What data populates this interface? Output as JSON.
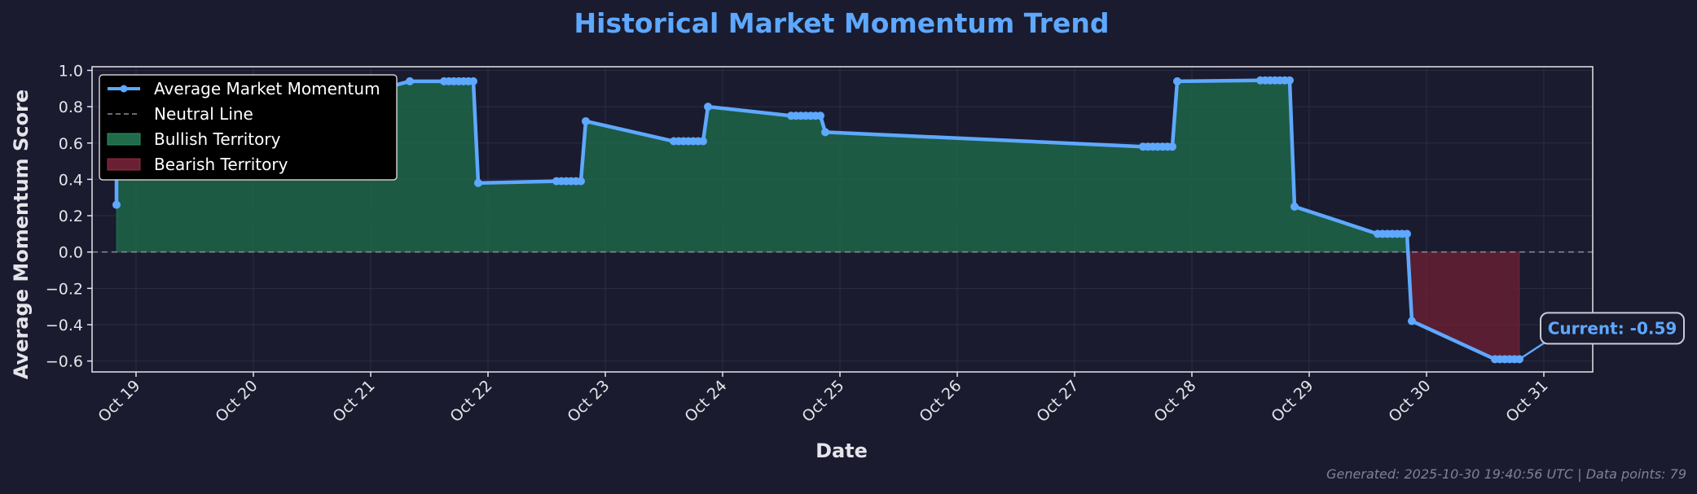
{
  "chart_data": {
    "type": "line",
    "title": "Historical Market Momentum Trend",
    "xlabel": "Date",
    "ylabel": "Average Momentum Score",
    "ylim": [
      -0.66,
      1.02
    ],
    "xlim": [
      "2025-10-18 15:00",
      "2025-10-31 10:00"
    ],
    "yticks": [
      -0.6,
      -0.4,
      -0.2,
      0.0,
      0.2,
      0.4,
      0.6,
      0.8,
      1.0
    ],
    "ytick_labels": [
      "−0.6",
      "−0.4",
      "−0.2",
      "0.0",
      "0.2",
      "0.4",
      "0.6",
      "0.8",
      "1.0"
    ],
    "xticks": [
      "2025-10-19",
      "2025-10-20",
      "2025-10-21",
      "2025-10-22",
      "2025-10-23",
      "2025-10-24",
      "2025-10-25",
      "2025-10-26",
      "2025-10-27",
      "2025-10-28",
      "2025-10-29",
      "2025-10-30",
      "2025-10-31"
    ],
    "xtick_labels": [
      "Oct 19",
      "Oct 20",
      "Oct 21",
      "Oct 22",
      "Oct 23",
      "Oct 24",
      "Oct 25",
      "Oct 26",
      "Oct 27",
      "Oct 28",
      "Oct 29",
      "Oct 30",
      "Oct 31"
    ],
    "grid": true,
    "legend_position": "top-left",
    "series": [
      {
        "name": "Average Market Momentum",
        "color": "#5ea8ff",
        "points": [
          [
            "2025-10-18 20:00",
            0.26
          ],
          [
            "2025-10-18 20:00",
            0.43
          ],
          [
            "2025-10-20 19:00",
            0.45
          ],
          [
            "2025-10-20 21:00",
            0.86
          ],
          [
            "2025-10-21 08:00",
            0.94
          ],
          [
            "2025-10-21 15:00",
            0.94
          ],
          [
            "2025-10-21 16:00",
            0.94
          ],
          [
            "2025-10-21 17:00",
            0.94
          ],
          [
            "2025-10-21 18:00",
            0.94
          ],
          [
            "2025-10-21 19:00",
            0.94
          ],
          [
            "2025-10-21 20:00",
            0.94
          ],
          [
            "2025-10-21 21:00",
            0.94
          ],
          [
            "2025-10-21 22:00",
            0.38
          ],
          [
            "2025-10-22 14:00",
            0.39
          ],
          [
            "2025-10-22 15:00",
            0.39
          ],
          [
            "2025-10-22 16:00",
            0.39
          ],
          [
            "2025-10-22 17:00",
            0.39
          ],
          [
            "2025-10-22 18:00",
            0.39
          ],
          [
            "2025-10-22 19:00",
            0.39
          ],
          [
            "2025-10-22 20:00",
            0.72
          ],
          [
            "2025-10-23 14:00",
            0.61
          ],
          [
            "2025-10-23 15:00",
            0.61
          ],
          [
            "2025-10-23 16:00",
            0.61
          ],
          [
            "2025-10-23 17:00",
            0.61
          ],
          [
            "2025-10-23 18:00",
            0.61
          ],
          [
            "2025-10-23 19:00",
            0.61
          ],
          [
            "2025-10-23 20:00",
            0.61
          ],
          [
            "2025-10-23 21:00",
            0.8
          ],
          [
            "2025-10-24 14:00",
            0.75
          ],
          [
            "2025-10-24 15:00",
            0.75
          ],
          [
            "2025-10-24 16:00",
            0.75
          ],
          [
            "2025-10-24 17:00",
            0.75
          ],
          [
            "2025-10-24 18:00",
            0.75
          ],
          [
            "2025-10-24 19:00",
            0.75
          ],
          [
            "2025-10-24 20:00",
            0.75
          ],
          [
            "2025-10-24 21:00",
            0.66
          ],
          [
            "2025-10-27 14:00",
            0.58
          ],
          [
            "2025-10-27 15:00",
            0.58
          ],
          [
            "2025-10-27 16:00",
            0.58
          ],
          [
            "2025-10-27 17:00",
            0.58
          ],
          [
            "2025-10-27 18:00",
            0.58
          ],
          [
            "2025-10-27 19:00",
            0.58
          ],
          [
            "2025-10-27 20:00",
            0.58
          ],
          [
            "2025-10-27 21:00",
            0.94
          ],
          [
            "2025-10-28 14:00",
            0.945
          ],
          [
            "2025-10-28 15:00",
            0.945
          ],
          [
            "2025-10-28 16:00",
            0.945
          ],
          [
            "2025-10-28 17:00",
            0.945
          ],
          [
            "2025-10-28 18:00",
            0.945
          ],
          [
            "2025-10-28 19:00",
            0.945
          ],
          [
            "2025-10-28 20:00",
            0.945
          ],
          [
            "2025-10-28 21:00",
            0.25
          ],
          [
            "2025-10-29 14:00",
            0.1
          ],
          [
            "2025-10-29 15:00",
            0.1
          ],
          [
            "2025-10-29 16:00",
            0.1
          ],
          [
            "2025-10-29 17:00",
            0.1
          ],
          [
            "2025-10-29 18:00",
            0.1
          ],
          [
            "2025-10-29 19:00",
            0.1
          ],
          [
            "2025-10-29 20:00",
            0.1
          ],
          [
            "2025-10-29 21:00",
            -0.38
          ],
          [
            "2025-10-30 14:00",
            -0.59
          ],
          [
            "2025-10-30 15:00",
            -0.59
          ],
          [
            "2025-10-30 16:00",
            -0.59
          ],
          [
            "2025-10-30 17:00",
            -0.59
          ],
          [
            "2025-10-30 18:00",
            -0.59
          ],
          [
            "2025-10-30 19:00",
            -0.59
          ]
        ]
      }
    ],
    "neutral_line": {
      "name": "Neutral Line",
      "value": 0.0,
      "color": "#8a8c9c"
    },
    "bullish_fill": {
      "name": "Bullish Territory",
      "color": "#1f6b4a"
    },
    "bearish_fill": {
      "name": "Bearish Territory",
      "color": "#6b1f33"
    },
    "annotation": {
      "text": "Current: -0.59",
      "x": "2025-10-30 19:00",
      "y": -0.59
    },
    "footer": "Generated: 2025-10-30 19:40:56 UTC | Data points: 79"
  }
}
